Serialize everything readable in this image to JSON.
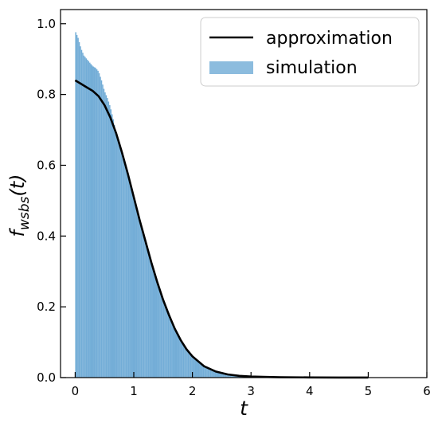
{
  "chart_data": {
    "type": "bar",
    "xlabel": "t",
    "ylabel": "f_{wsbs}(t)",
    "xlim": [
      -0.25,
      6.0
    ],
    "ylim": [
      0.0,
      1.04
    ],
    "xticks": [
      "0",
      "1",
      "2",
      "3",
      "4",
      "5",
      "6"
    ],
    "yticks": [
      "0.0",
      "0.2",
      "0.4",
      "0.6",
      "0.8",
      "1.0"
    ],
    "grid": false,
    "legend_position": "top-right",
    "series": [
      {
        "name": "approximation",
        "kind": "line",
        "color": "#000000",
        "x": [
          0.0,
          0.1,
          0.2,
          0.3,
          0.4,
          0.5,
          0.6,
          0.7,
          0.8,
          0.9,
          1.0,
          1.1,
          1.2,
          1.3,
          1.4,
          1.5,
          1.6,
          1.7,
          1.8,
          1.9,
          2.0,
          2.2,
          2.4,
          2.6,
          2.8,
          3.0,
          3.2,
          3.5,
          4.0,
          4.5,
          5.0
        ],
        "y": [
          0.84,
          0.83,
          0.82,
          0.81,
          0.795,
          0.77,
          0.735,
          0.69,
          0.635,
          0.575,
          0.51,
          0.445,
          0.385,
          0.325,
          0.27,
          0.22,
          0.177,
          0.138,
          0.106,
          0.08,
          0.06,
          0.032,
          0.017,
          0.009,
          0.005,
          0.003,
          0.002,
          0.001,
          0.0005,
          0.0002,
          0.0001
        ]
      },
      {
        "name": "simulation",
        "kind": "histogram",
        "color": "#5b9fd0",
        "x": [
          0.0,
          0.05,
          0.1,
          0.15,
          0.2,
          0.25,
          0.3,
          0.35,
          0.4,
          0.45,
          0.5,
          0.55,
          0.6,
          0.65,
          0.7,
          0.75,
          0.8,
          0.85,
          0.9,
          0.95,
          1.0,
          1.05,
          1.1,
          1.15,
          1.2,
          1.25,
          1.3,
          1.35,
          1.4,
          1.45,
          1.5,
          1.55,
          1.6,
          1.65,
          1.7,
          1.75,
          1.8,
          1.85,
          1.9,
          1.95,
          2.0,
          2.1,
          2.2,
          2.3,
          2.4,
          2.5,
          2.6,
          2.7,
          2.8,
          2.9,
          3.0,
          3.2,
          3.4,
          3.6,
          3.8,
          4.0,
          4.2
        ],
        "y": [
          0.98,
          0.96,
          0.93,
          0.91,
          0.9,
          0.89,
          0.88,
          0.875,
          0.865,
          0.84,
          0.81,
          0.79,
          0.765,
          0.73,
          0.69,
          0.665,
          0.635,
          0.605,
          0.58,
          0.54,
          0.505,
          0.47,
          0.445,
          0.415,
          0.385,
          0.355,
          0.33,
          0.3,
          0.27,
          0.245,
          0.22,
          0.2,
          0.175,
          0.155,
          0.135,
          0.12,
          0.105,
          0.093,
          0.08,
          0.07,
          0.06,
          0.045,
          0.033,
          0.024,
          0.018,
          0.013,
          0.009,
          0.006,
          0.004,
          0.003,
          0.002,
          0.0015,
          0.001,
          0.0007,
          0.0005,
          0.0003,
          0.0002
        ]
      }
    ]
  }
}
